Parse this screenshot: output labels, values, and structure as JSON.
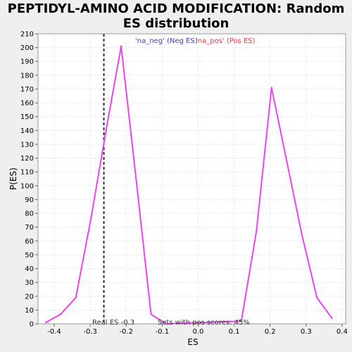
{
  "chart_data": {
    "type": "line",
    "title": "PEPTIDYL-AMINO ACID MODIFICATION: Random ES distribution",
    "xlabel": "ES",
    "ylabel": "P(ES)",
    "xlim": [
      -0.445,
      0.41
    ],
    "ylim": [
      0,
      210
    ],
    "xticks": [
      -0.4,
      -0.3,
      -0.2,
      -0.1,
      0.0,
      0.1,
      0.2,
      0.3,
      0.4
    ],
    "xtick_labels": [
      "-0.4",
      "-0.3",
      "-0.2",
      "-0.1",
      "0.0",
      "0.1",
      "0.2",
      "0.3",
      "0.4"
    ],
    "yticks": [
      0,
      10,
      20,
      30,
      40,
      50,
      60,
      70,
      80,
      90,
      100,
      110,
      120,
      130,
      140,
      150,
      160,
      170,
      180,
      190,
      200,
      210
    ],
    "grid": true,
    "legend": {
      "placement": "top-center",
      "entries": [
        {
          "label": "'na_neg' (Neg ES)",
          "color": "#4040c0"
        },
        {
          "label": "'na_pos' (Pos ES)",
          "color": "#e04040"
        }
      ]
    },
    "series": [
      {
        "color": "#ee44ee",
        "x": [
          -0.423,
          -0.382,
          -0.34,
          -0.298,
          -0.256,
          -0.214,
          -0.172,
          -0.131,
          -0.089,
          0.12,
          0.162,
          0.204,
          0.246,
          0.288,
          0.33,
          0.372
        ],
        "y": [
          1,
          7,
          19,
          76,
          140,
          201,
          104,
          7,
          0,
          2,
          67,
          171,
          118,
          65,
          19,
          4
        ]
      }
    ],
    "real_es": {
      "x": -0.262,
      "label": "Real ES -0.3",
      "color": "#333333"
    },
    "annotation": "Sets with pos scores: 45%"
  }
}
